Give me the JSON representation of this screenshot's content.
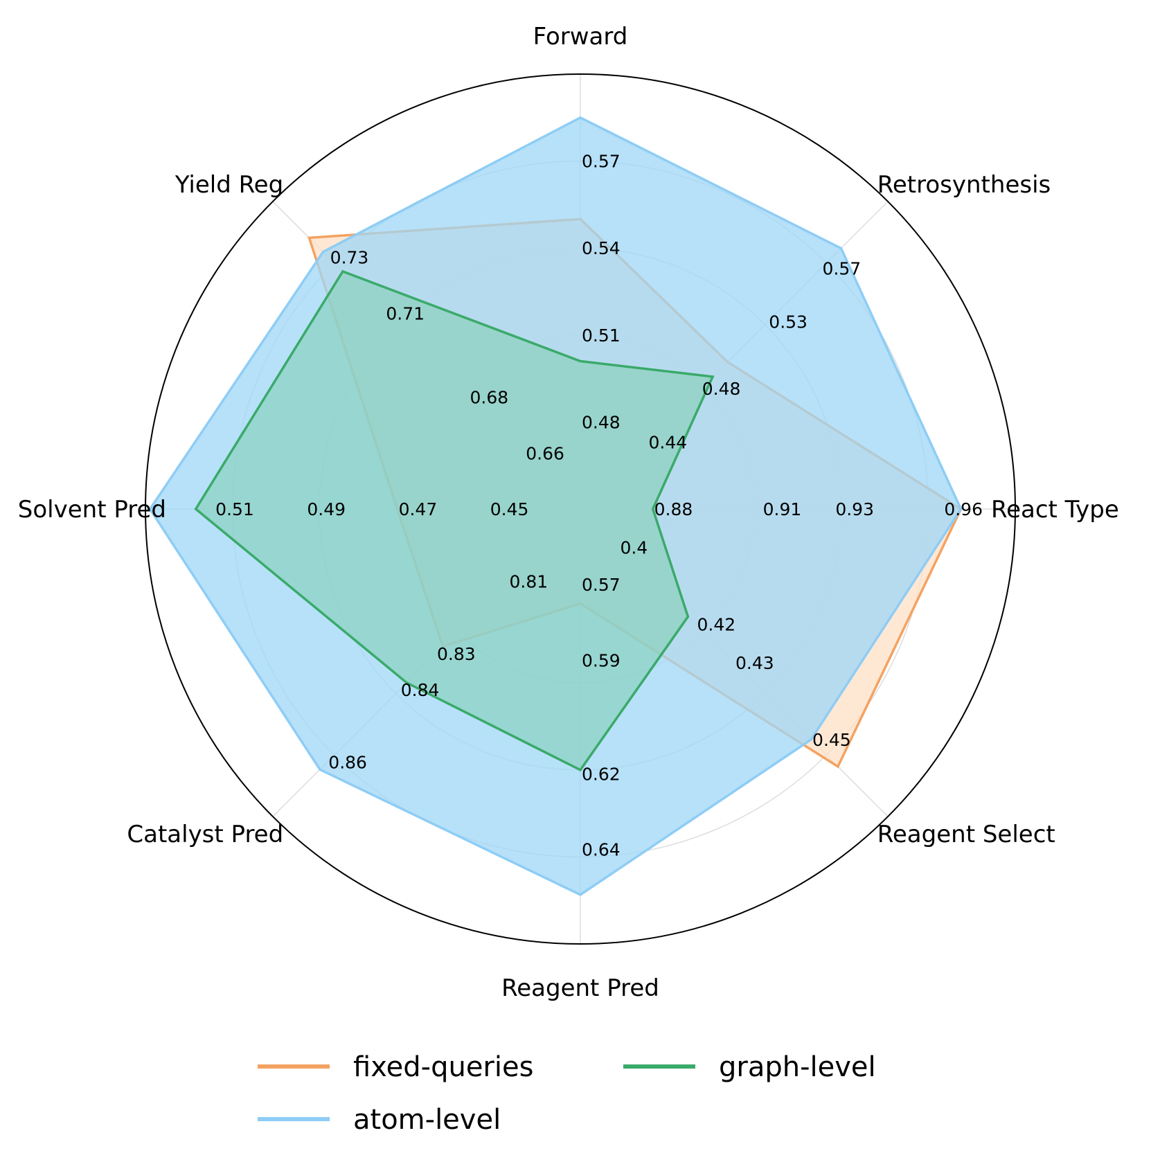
{
  "chart_data": {
    "type": "radar",
    "title": "",
    "axes": [
      {
        "name": "Forward",
        "ticks": [
          0.48,
          0.51,
          0.54,
          0.57
        ],
        "range": [
          0.45,
          0.6
        ]
      },
      {
        "name": "Retrosynthesis",
        "ticks": [
          0.44,
          0.48,
          0.53,
          0.57
        ],
        "range": [
          0.39,
          0.62
        ]
      },
      {
        "name": "React Type",
        "ticks": [
          0.88,
          0.91,
          0.93,
          0.96
        ],
        "range": [
          0.86,
          0.98
        ]
      },
      {
        "name": "Reagent Select",
        "ticks": [
          0.4,
          0.42,
          0.43,
          0.45
        ],
        "range": [
          0.39,
          0.47
        ]
      },
      {
        "name": "Reagent Pred",
        "ticks": [
          0.57,
          0.59,
          0.62,
          0.64
        ],
        "range": [
          0.55,
          0.665
        ]
      },
      {
        "name": "Catalyst Pred",
        "ticks": [
          0.81,
          0.83,
          0.84,
          0.86
        ],
        "range": [
          0.79,
          0.875
        ]
      },
      {
        "name": "Solvent Pred",
        "ticks": [
          0.45,
          0.47,
          0.49,
          0.51
        ],
        "range": [
          0.43,
          0.525
        ]
      },
      {
        "name": "Yield Reg",
        "ticks": [
          0.66,
          0.68,
          0.71,
          0.73
        ],
        "range": [
          0.64,
          0.75
        ]
      }
    ],
    "tick_labels": [
      [
        "0.48",
        "0.51",
        "0.54",
        "0.57"
      ],
      [
        "0.44",
        "0.48",
        "0.53",
        "0.57"
      ],
      [
        "0.88",
        "0.91",
        "0.93",
        "0.96"
      ],
      [
        "0.4",
        "0.42",
        "0.43",
        "0.45"
      ],
      [
        "0.57",
        "0.59",
        "0.62",
        "0.64"
      ],
      [
        "0.81",
        "0.83",
        "0.84",
        "0.86"
      ],
      [
        "0.45",
        "0.47",
        "0.49",
        "0.51"
      ],
      [
        "0.66",
        "0.68",
        "0.71",
        "0.73"
      ]
    ],
    "series": [
      {
        "name": "fixed-queries",
        "color": "#f4a261",
        "fill": "#fde0c5",
        "values": [
          0.55,
          0.5,
          0.965,
          0.457,
          0.575,
          0.828,
          0.47,
          0.737
        ]
      },
      {
        "name": "atom-level",
        "color": "#8ecdf5",
        "fill": "#9fd7f7",
        "values": [
          0.585,
          0.585,
          0.965,
          0.45,
          0.652,
          0.862,
          0.524,
          0.732
        ]
      },
      {
        "name": "graph-level",
        "color": "#3aaa6a",
        "fill": "#7fcdb0",
        "values": [
          0.501,
          0.489,
          0.88,
          0.418,
          0.619,
          0.838,
          0.514,
          0.725
        ]
      }
    ],
    "grid": true,
    "legend_position": "bottom"
  }
}
